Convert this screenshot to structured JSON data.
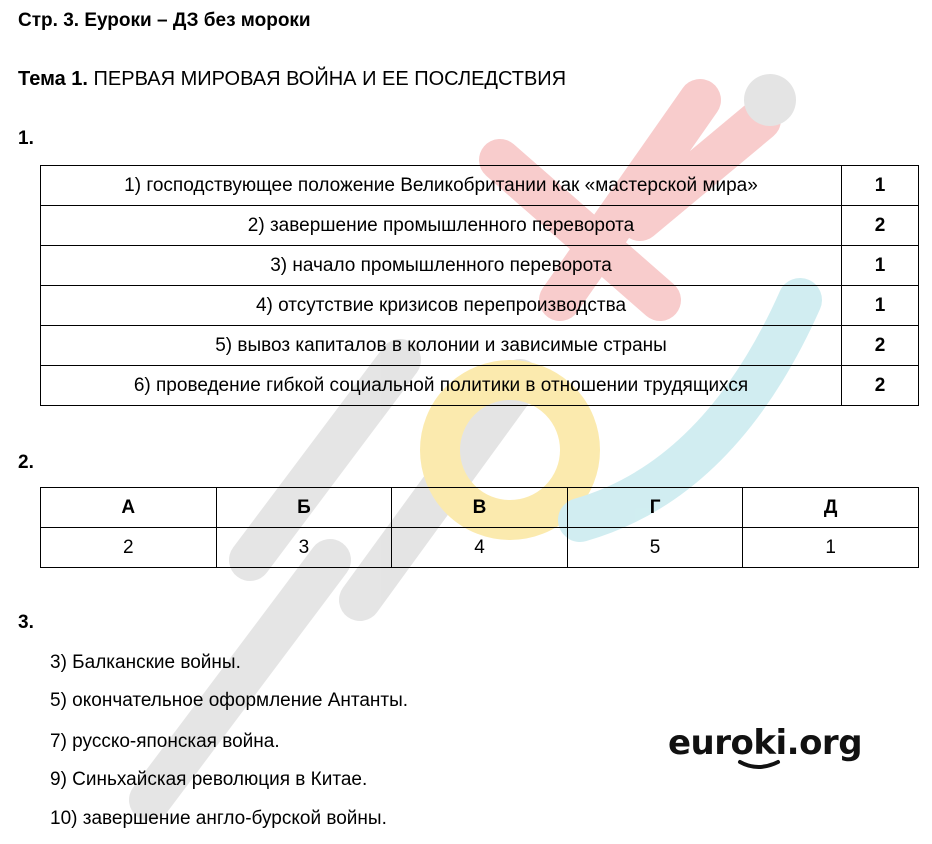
{
  "header": {
    "title": "Стр. 3. Еуроки – ДЗ без мороки"
  },
  "topic": {
    "label": "Тема 1.",
    "title": "ПЕРВАЯ МИРОВАЯ ВОЙНА И ЕЕ ПОСЛЕДСТВИЯ"
  },
  "task1": {
    "number": "1.",
    "rows": [
      {
        "text": "1) господствующее положение Великобритании как «мастерской мира»",
        "value": "1"
      },
      {
        "text": "2) завершение промышленного переворота",
        "value": "2"
      },
      {
        "text": "3) начало промышленного переворота",
        "value": "1"
      },
      {
        "text": "4) отсутствие кризисов перепроизводства",
        "value": "1"
      },
      {
        "text": "5) вывоз капиталов в колонии и зависимые страны",
        "value": "2"
      },
      {
        "text": "6) проведение гибкой социальной политики в отношении трудящихся",
        "value": "2"
      }
    ]
  },
  "task2": {
    "number": "2.",
    "headers": [
      "А",
      "Б",
      "В",
      "Г",
      "Д"
    ],
    "values": [
      "2",
      "3",
      "4",
      "5",
      "1"
    ]
  },
  "task3": {
    "number": "3.",
    "items": [
      "3) Балканские войны.",
      "5) окончательное оформление Антанты.",
      "7) русско-японская война.",
      "9) Синьхайская революция в Китае.",
      "10) завершение англо-бурской войны."
    ]
  },
  "watermark": {
    "text": "euroki",
    "colors": [
      "#d9d9d9",
      "#f7e08a",
      "#f4b7b7",
      "#bfe7ec"
    ]
  },
  "logo": {
    "text": "euroki.org"
  }
}
